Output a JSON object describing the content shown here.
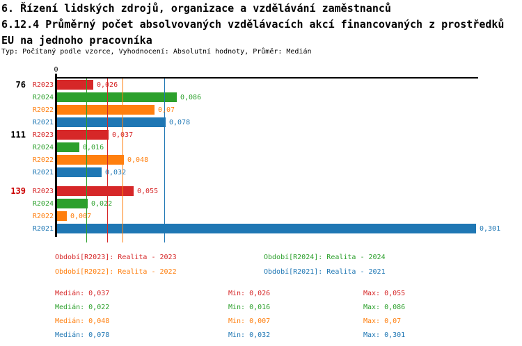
{
  "header": {
    "title_line1": "6. Řízení lidských zdrojů, organizace a vzdělávání zaměstnanců",
    "title_line2": "6.12.4 Průměrný počet absolvovaných vzdělávacích akcí financovaných z prostředků",
    "title_line3": "EU na jednoho pracovníka",
    "meta_line": "Typ: Počítaný podle vzorce, Vyhodnocení: Absolutní hodnoty, Průměr: Medián"
  },
  "colors": {
    "R2023": "#d62728",
    "R2024": "#2ca02c",
    "R2022": "#ff7f0e",
    "R2021": "#1f77b4",
    "axis": "#000000",
    "group_label": "#000000",
    "group_label_highlight": "#cc0000"
  },
  "chart_data": {
    "type": "bar",
    "orientation": "horizontal",
    "x_axis": {
      "zero_label": "0",
      "min": 0,
      "max": 0.303,
      "gridlines": "median-lines-only"
    },
    "categories": [
      "76",
      "111",
      "139"
    ],
    "category_label_colors": [
      "#000000",
      "#000000",
      "#cc0000"
    ],
    "series_order": [
      "R2023",
      "R2024",
      "R2022",
      "R2021"
    ],
    "series": [
      {
        "name": "R2023",
        "values": [
          0.026,
          0.037,
          0.055
        ],
        "median": 0.037,
        "min": 0.026,
        "max": 0.055
      },
      {
        "name": "R2024",
        "values": [
          0.086,
          0.016,
          0.022
        ],
        "median": 0.022,
        "min": 0.016,
        "max": 0.086
      },
      {
        "name": "R2022",
        "values": [
          0.07,
          0.048,
          0.007
        ],
        "median": 0.048,
        "min": 0.007,
        "max": 0.07
      },
      {
        "name": "R2021",
        "values": [
          0.078,
          0.032,
          0.301
        ],
        "median": 0.078,
        "min": 0.032,
        "max": 0.301
      }
    ],
    "groups": [
      {
        "label": "76",
        "bars": [
          {
            "series": "R2023",
            "value": 0.026,
            "display": "0,026"
          },
          {
            "series": "R2024",
            "value": 0.086,
            "display": "0,086"
          },
          {
            "series": "R2022",
            "value": 0.07,
            "display": "0,07"
          },
          {
            "series": "R2021",
            "value": 0.078,
            "display": "0,078"
          }
        ]
      },
      {
        "label": "111",
        "bars": [
          {
            "series": "R2023",
            "value": 0.037,
            "display": "0,037"
          },
          {
            "series": "R2024",
            "value": 0.016,
            "display": "0,016"
          },
          {
            "series": "R2022",
            "value": 0.048,
            "display": "0,048"
          },
          {
            "series": "R2021",
            "value": 0.032,
            "display": "0,032"
          }
        ]
      },
      {
        "label": "139",
        "bars": [
          {
            "series": "R2023",
            "value": 0.055,
            "display": "0,055"
          },
          {
            "series": "R2024",
            "value": 0.022,
            "display": "0,022"
          },
          {
            "series": "R2022",
            "value": 0.007,
            "display": "0,007"
          },
          {
            "series": "R2021",
            "value": 0.301,
            "display": "0,301"
          }
        ]
      }
    ],
    "median_lines": [
      {
        "series": "R2023",
        "value": 0.037
      },
      {
        "series": "R2024",
        "value": 0.022
      },
      {
        "series": "R2022",
        "value": 0.048
      },
      {
        "series": "R2021",
        "value": 0.078
      }
    ]
  },
  "legend": {
    "items": [
      {
        "series": "R2023",
        "text": "Období[R2023]: Realita - 2023"
      },
      {
        "series": "R2024",
        "text": "Období[R2024]: Realita - 2024"
      },
      {
        "series": "R2022",
        "text": "Období[R2022]: Realita - 2022"
      },
      {
        "series": "R2021",
        "text": "Období[R2021]: Realita - 2021"
      }
    ]
  },
  "stats": {
    "rows": [
      {
        "series": "R2023",
        "median": "Medián: 0,037",
        "min": "Min: 0,026",
        "max": "Max: 0,055"
      },
      {
        "series": "R2024",
        "median": "Medián: 0,022",
        "min": "Min: 0,016",
        "max": "Max: 0,086"
      },
      {
        "series": "R2022",
        "median": "Medián: 0,048",
        "min": "Min: 0,007",
        "max": "Max: 0,07"
      },
      {
        "series": "R2021",
        "median": "Medián: 0,078",
        "min": "Min: 0,032",
        "max": "Max: 0,301"
      }
    ]
  }
}
